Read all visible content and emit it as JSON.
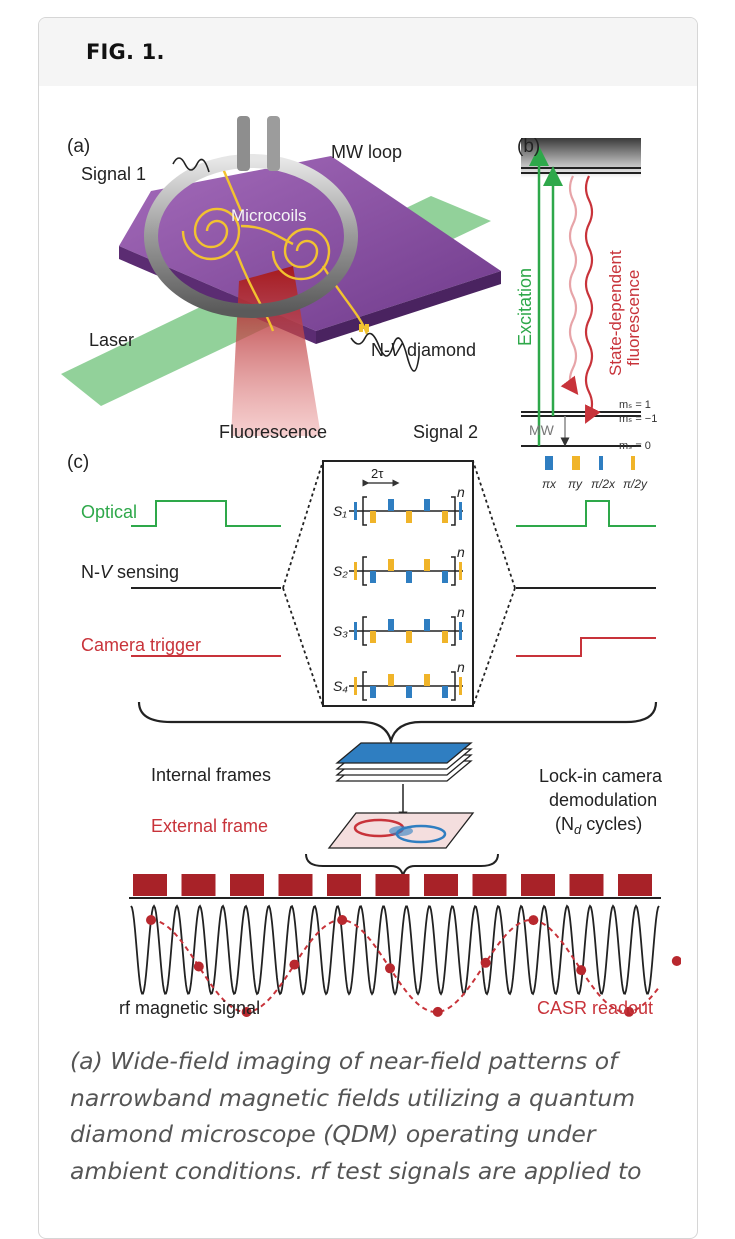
{
  "figure": {
    "title": "FIG. 1.",
    "panel_a": {
      "label": "(a)",
      "signal1": "Signal 1",
      "mw_loop": "MW loop",
      "microcoils": "Microcoils",
      "laser": "Laser",
      "nv_prefix": "N-",
      "nv_v": "V",
      "nv_suffix": " diamond",
      "fluorescence": "Fluorescence",
      "signal2": "Signal 2"
    },
    "panel_b": {
      "label": "(b)",
      "excitation": "Excitation",
      "fluor_line1": "State-dependent",
      "fluor_line2": "fluorescence",
      "mw": "MW",
      "ms1": "mₛ = 1",
      "ms_neg1": "mₛ = −1",
      "ms0": "mₛ = 0"
    },
    "panel_c": {
      "label": "(c)",
      "optical": "Optical",
      "nv_sensing_prefix": "N-",
      "nv_sensing_v": "V",
      "nv_sensing_suffix": " sensing",
      "camera_trigger": "Camera trigger",
      "two_tau": "2τ",
      "n": "n",
      "seq_labels": [
        "S₁",
        "S₂",
        "S₃",
        "S₄"
      ],
      "legend": [
        "πx",
        "πy",
        "π/2x",
        "π/2y"
      ],
      "internal_frames": "Internal frames",
      "external_frame": "External frame",
      "lockin_line1": "Lock-in camera",
      "lockin_line2": "demodulation",
      "lockin_line3_pre": "(N",
      "lockin_line3_sub": "d",
      "lockin_line3_post": " cycles)",
      "rf_signal": "rf magnetic signal",
      "casr": "CASR readout"
    },
    "colors": {
      "green": "#2ea84a",
      "red": "#c8333a",
      "blue": "#2f7ec1",
      "yellow": "#f0b429",
      "purple": "#8c54a4"
    }
  },
  "caption": {
    "lines": [
      "(a) Wide-field imaging of near-field patterns of",
      "narrowband magnetic fields utilizing a quantum",
      "diamond microscope (QDM) operating under",
      "ambient conditions. rf test signals are applied to"
    ]
  }
}
